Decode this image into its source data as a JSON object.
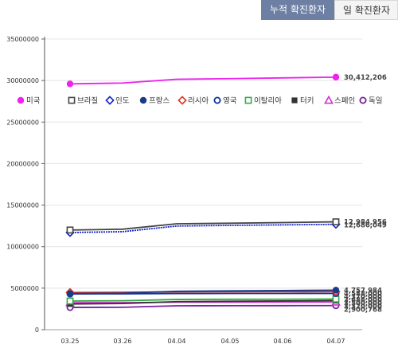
{
  "tabs": {
    "active_label": "누적 확진환자",
    "inactive_label": "일 확진환자"
  },
  "chart_data": {
    "type": "line",
    "title": "",
    "xlabel": "",
    "ylabel": "",
    "ylim": [
      0,
      35000000
    ],
    "yticks": [
      "0",
      "5000000",
      "10000000",
      "15000000",
      "20000000",
      "25000000",
      "30000000",
      "35000000"
    ],
    "categories": [
      "03.25",
      "03.26",
      "04.04",
      "04.05",
      "04.06",
      "04.07"
    ],
    "grid": "horizontal",
    "legend_position": "top",
    "series": [
      {
        "name": "미국",
        "color": "#ee22ee",
        "marker": "filled-circle",
        "values": [
          29600000,
          29700000,
          30150000,
          30230000,
          30320000,
          30412206
        ]
      },
      {
        "name": "브라질",
        "color": "#444444",
        "marker": "open-square",
        "values": [
          12000000,
          12100000,
          12750000,
          12820000,
          12900000,
          12984956
        ]
      },
      {
        "name": "인도",
        "color": "#1122cc",
        "marker": "open-diamond",
        "values": [
          11700000,
          11800000,
          12480000,
          12560000,
          12620000,
          12686049
        ]
      },
      {
        "name": "프랑스",
        "color": "#1a3a8a",
        "marker": "filled-circle",
        "values": [
          4350000,
          4400000,
          4620000,
          4670000,
          4710000,
          4757984
        ]
      },
      {
        "name": "러시아",
        "color": "#dd3322",
        "marker": "open-diamond",
        "values": [
          4480000,
          4500000,
          4560000,
          4575000,
          4580000,
          4588000
        ]
      },
      {
        "name": "영국",
        "color": "#113399",
        "marker": "open-circle",
        "values": [
          4310000,
          4320000,
          4355000,
          4362000,
          4365000,
          4370000
        ]
      },
      {
        "name": "이탈리아",
        "color": "#33aa44",
        "marker": "open-square",
        "values": [
          3450000,
          3490000,
          3640000,
          3660000,
          3670000,
          3686000
        ]
      },
      {
        "name": "터키",
        "color": "#333333",
        "marker": "filled-square",
        "values": [
          3100000,
          3150000,
          3380000,
          3420000,
          3460000,
          3500000
        ]
      },
      {
        "name": "스페인",
        "color": "#cc33cc",
        "marker": "open-triangle",
        "values": [
          3250000,
          3260000,
          3310000,
          3315000,
          3318000,
          3320000
        ]
      },
      {
        "name": "독일",
        "color": "#772299",
        "marker": "open-circle",
        "values": [
          2680000,
          2700000,
          2880000,
          2890000,
          2895000,
          2900768
        ]
      }
    ],
    "data_labels": [
      {
        "series": 0,
        "text": "30,412,206"
      },
      {
        "series": 1,
        "text": "12,984,956"
      },
      {
        "series": 2,
        "text": "12,686,049"
      },
      {
        "series": 3,
        "text": "4,757,984"
      },
      {
        "series": 4,
        "text": "4,588,000"
      },
      {
        "series": 5,
        "text": "4,370,000"
      },
      {
        "series": 6,
        "text": "3,686,000"
      },
      {
        "series": 7,
        "text": "3,500,000"
      },
      {
        "series": 8,
        "text": "3,320,000"
      },
      {
        "series": 9,
        "text": "2,900,768"
      }
    ]
  }
}
